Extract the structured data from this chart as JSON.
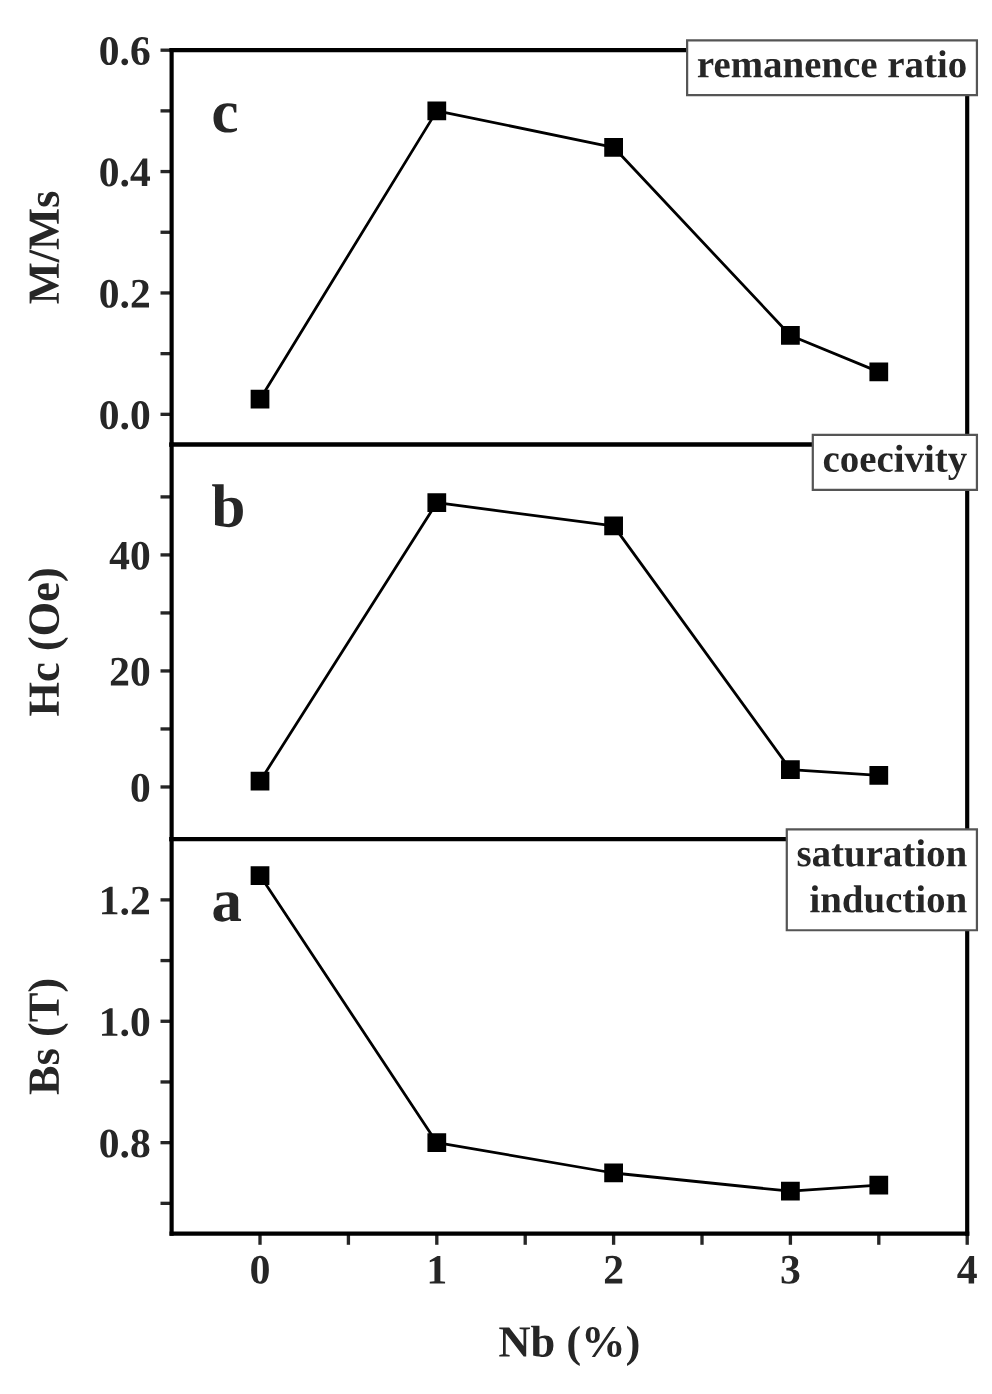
{
  "chart_data": [
    {
      "type": "line",
      "ylabel": "M/Ms",
      "annotations": [
        "c",
        "remanence ratio"
      ],
      "marker": "square",
      "line_style": "solid",
      "tick_labels": "y",
      "grid": false,
      "legend": false,
      "xlim": [
        -0.5,
        4
      ],
      "ylim": [
        -0.05,
        0.6
      ],
      "yticks": [
        {
          "value": 0.0,
          "label": "0.0"
        },
        {
          "value": 0.1,
          "label": null
        },
        {
          "value": 0.2,
          "label": "0.2"
        },
        {
          "value": 0.3,
          "label": null
        },
        {
          "value": 0.4,
          "label": "0.4"
        },
        {
          "value": 0.5,
          "label": null
        },
        {
          "value": 0.6,
          "label": "0.6"
        }
      ],
      "x": [
        0,
        1,
        2,
        3,
        3.5
      ],
      "series": [
        {
          "color": "#000000",
          "values": [
            0.025,
            0.5,
            0.44,
            0.13,
            0.07
          ]
        }
      ]
    },
    {
      "type": "line",
      "ylabel": "Hc (Oe)",
      "annotations": [
        "b",
        "coecivity"
      ],
      "marker": "square",
      "line_style": "solid",
      "tick_labels": "y",
      "grid": false,
      "legend": false,
      "xlim": [
        -0.5,
        4
      ],
      "ylim": [
        -9,
        59
      ],
      "yticks": [
        0,
        {
          "value": 10,
          "label": null
        },
        20,
        {
          "value": 30,
          "label": null
        },
        40,
        {
          "value": 50,
          "label": null
        }
      ],
      "x": [
        0,
        1,
        2,
        3,
        3.5
      ],
      "series": [
        {
          "color": "#000000",
          "values": [
            1,
            49,
            45,
            3,
            2
          ]
        }
      ]
    },
    {
      "type": "line",
      "xlabel": "Nb (%)",
      "ylabel": "Bs (T)",
      "annotations": [
        "a",
        "saturation\ninduction"
      ],
      "marker": "square",
      "line_style": "solid",
      "grid": false,
      "legend": false,
      "xlim": [
        -0.5,
        4
      ],
      "ylim": [
        0.65,
        1.3
      ],
      "xticks": [
        0,
        {
          "value": 0.5,
          "label": null
        },
        1,
        {
          "value": 1.5,
          "label": null
        },
        2,
        {
          "value": 2.5,
          "label": null
        },
        3,
        {
          "value": 3.5,
          "label": null
        },
        4
      ],
      "yticks": [
        {
          "value": 0.7,
          "label": null
        },
        {
          "value": 0.8,
          "label": "0.8"
        },
        {
          "value": 0.9,
          "label": null
        },
        {
          "value": 1.0,
          "label": "1.0"
        },
        {
          "value": 1.1,
          "label": null
        },
        {
          "value": 1.2,
          "label": "1.2"
        }
      ],
      "x": [
        0,
        1,
        2,
        3,
        3.5
      ],
      "series": [
        {
          "color": "#000000",
          "values": [
            1.24,
            0.8,
            0.75,
            0.72,
            0.73
          ]
        }
      ]
    }
  ]
}
